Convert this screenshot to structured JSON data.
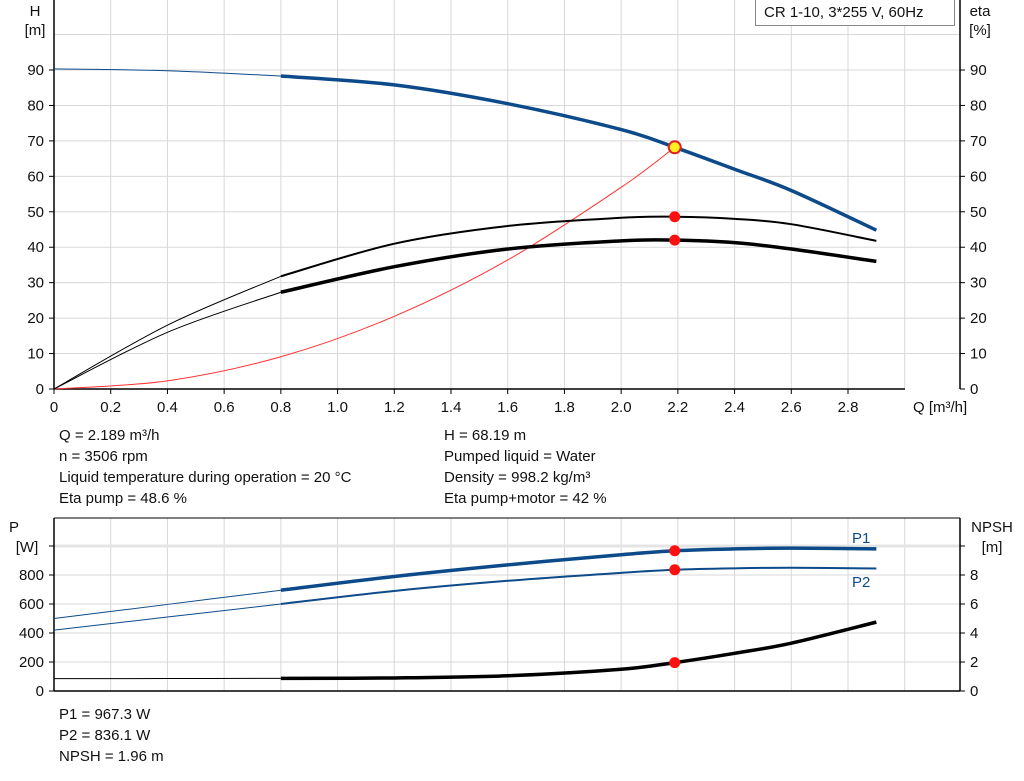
{
  "chart_data": [
    {
      "type": "line",
      "legend": "CR 1-10, 3*255 V, 60Hz",
      "xlabel": "Q [m³/h]",
      "ylabel_left": [
        "H",
        "[m]"
      ],
      "ylabel_right": [
        "eta",
        "[%]"
      ],
      "xlim": [
        0,
        3.0
      ],
      "ylim": [
        0,
        100
      ],
      "xticks": [
        "0",
        "0.2",
        "0.4",
        "0.6",
        "0.8",
        "1.0",
        "1.2",
        "1.4",
        "1.6",
        "1.8",
        "2.0",
        "2.2",
        "2.4",
        "2.6",
        "2.8"
      ],
      "yticks": [
        "0",
        "10",
        "20",
        "30",
        "40",
        "50",
        "60",
        "70",
        "80",
        "90"
      ],
      "grid": true,
      "series": [
        {
          "id": "H",
          "color": "#0d4a8a",
          "x": [
            0,
            0.4,
            0.8,
            1.2,
            1.6,
            2.0,
            2.189,
            2.4,
            2.6,
            2.9
          ],
          "y": [
            90.3,
            89.8,
            88.3,
            85.8,
            80.5,
            73.2,
            68.19,
            62,
            56,
            44.8
          ]
        },
        {
          "id": "eta_pump",
          "color": "#000000",
          "x": [
            0,
            0.4,
            0.8,
            1.2,
            1.6,
            2.0,
            2.189,
            2.4,
            2.6,
            2.9
          ],
          "y": [
            0,
            18,
            31.8,
            41,
            46,
            48.3,
            48.6,
            48,
            46.5,
            41.8
          ]
        },
        {
          "id": "eta_total",
          "color": "#000000",
          "x": [
            0,
            0.4,
            0.8,
            1.2,
            1.6,
            2.0,
            2.189,
            2.4,
            2.6,
            2.9
          ],
          "y": [
            0,
            16,
            27.3,
            34.5,
            39.5,
            41.8,
            42,
            41.3,
            39.5,
            36
          ]
        },
        {
          "id": "system",
          "color": "#ff3030",
          "x": [
            0,
            0.4,
            0.8,
            1.2,
            1.6,
            2.0,
            2.189
          ],
          "y": [
            0,
            2.3,
            9.1,
            20.5,
            36.4,
            56.9,
            68.19
          ]
        }
      ],
      "operating_points": [
        {
          "x": 2.189,
          "y": 68.19
        },
        {
          "x": 2.189,
          "y": 48.6
        },
        {
          "x": 2.189,
          "y": 42
        }
      ]
    },
    {
      "type": "line",
      "ylabel_left": [
        "P",
        "[W]"
      ],
      "ylabel_right": [
        "NPSH",
        "[m]"
      ],
      "xlim": [
        0,
        3.0
      ],
      "ylim": [
        0,
        1000
      ],
      "ylim_right": [
        0,
        10
      ],
      "yticks": [
        "0",
        "200",
        "400",
        "600",
        "800"
      ],
      "yticks_right": [
        "0",
        "2",
        "4",
        "6",
        "8"
      ],
      "grid": true,
      "series": [
        {
          "name": "P1",
          "color": "#0d4a8a",
          "x": [
            0,
            0.4,
            0.8,
            1.2,
            1.6,
            2.0,
            2.189,
            2.4,
            2.6,
            2.9
          ],
          "y": [
            500,
            597,
            695,
            790,
            870,
            940,
            967.3,
            980,
            985,
            980
          ]
        },
        {
          "name": "P2",
          "color": "#0d4a8a",
          "x": [
            0,
            0.4,
            0.8,
            1.2,
            1.6,
            2.0,
            2.189,
            2.4,
            2.6,
            2.9
          ],
          "y": [
            420,
            510,
            600,
            690,
            760,
            815,
            836.1,
            846,
            850,
            845
          ]
        },
        {
          "id": "NPSH",
          "color": "#000000",
          "axis": "right",
          "x": [
            0,
            0.4,
            0.8,
            1.2,
            1.6,
            2.0,
            2.189,
            2.4,
            2.6,
            2.9
          ],
          "y": [
            0.85,
            0.86,
            0.87,
            0.9,
            1.05,
            1.5,
            1.96,
            2.6,
            3.3,
            4.75
          ]
        }
      ],
      "operating_points": [
        {
          "x": 2.189,
          "y": 967.3
        },
        {
          "x": 2.189,
          "y": 836.1
        },
        {
          "x": 2.189,
          "y": 196
        }
      ]
    }
  ],
  "info_top": {
    "left": [
      "Q = 2.189 m³/h",
      "n = 3506 rpm",
      "Liquid temperature during operation = 20 °C",
      "Eta pump = 48.6 %"
    ],
    "right": [
      "H = 68.19 m",
      "Pumped liquid = Water",
      "Density = 998.2 kg/m³",
      "Eta pump+motor = 42 %"
    ]
  },
  "info_bottom": [
    "P1 = 967.3 W",
    "P2 = 836.1 W",
    "NPSH = 1.96 m"
  ]
}
